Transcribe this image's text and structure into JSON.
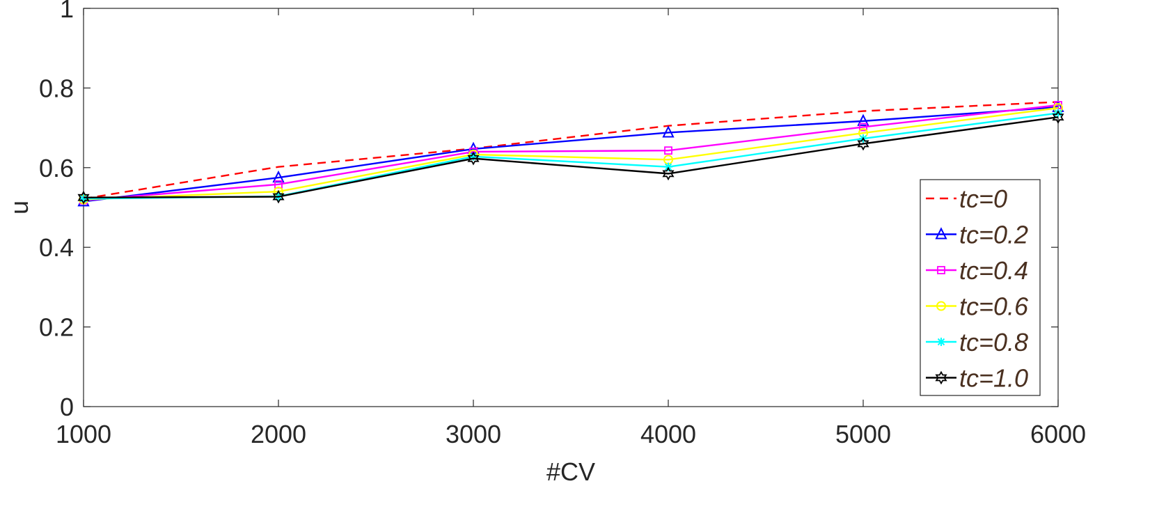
{
  "chart_data": {
    "type": "line",
    "title": "",
    "xlabel": "#CV",
    "ylabel": "u",
    "x": [
      1000,
      2000,
      3000,
      4000,
      5000,
      6000
    ],
    "xlim": [
      1000,
      6000
    ],
    "ylim": [
      0,
      1
    ],
    "xticks": [
      "1000",
      "2000",
      "3000",
      "4000",
      "5000",
      "6000"
    ],
    "yticks": [
      "0",
      "0.2",
      "0.4",
      "0.6",
      "0.8",
      "1"
    ],
    "grid": false,
    "legend_position": "bottom-right",
    "series": [
      {
        "name": "tc=0",
        "color": "#ff0000",
        "dash": "dashed",
        "marker": "none",
        "values": [
          0.522,
          0.602,
          0.648,
          0.705,
          0.742,
          0.765
        ]
      },
      {
        "name": "tc=0.2",
        "color": "#0000ff",
        "dash": "solid",
        "marker": "triangle",
        "values": [
          0.515,
          0.575,
          0.647,
          0.688,
          0.717,
          0.752
        ]
      },
      {
        "name": "tc=0.4",
        "color": "#ff00ff",
        "dash": "solid",
        "marker": "square",
        "values": [
          0.518,
          0.558,
          0.64,
          0.643,
          0.702,
          0.757
        ]
      },
      {
        "name": "tc=0.6",
        "color": "#ffff00",
        "dash": "solid",
        "marker": "circle",
        "values": [
          0.52,
          0.54,
          0.633,
          0.62,
          0.687,
          0.75
        ]
      },
      {
        "name": "tc=0.8",
        "color": "#00ffff",
        "dash": "solid",
        "marker": "asterisk",
        "values": [
          0.522,
          0.528,
          0.628,
          0.602,
          0.673,
          0.737
        ]
      },
      {
        "name": "tc=1.0",
        "color": "#000000",
        "dash": "solid",
        "marker": "hexagram",
        "values": [
          0.525,
          0.527,
          0.623,
          0.585,
          0.66,
          0.727
        ]
      }
    ]
  }
}
